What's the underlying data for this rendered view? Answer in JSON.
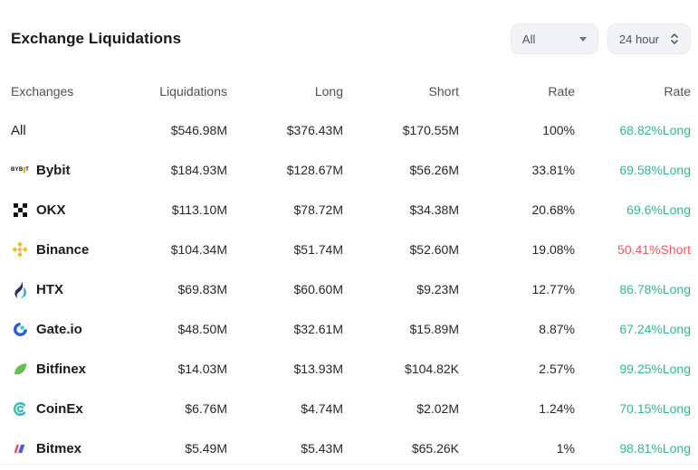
{
  "header": {
    "title": "Exchange Liquidations",
    "filter_dropdown": {
      "value": "All"
    },
    "time_dropdown": {
      "value": "24 hour"
    }
  },
  "table": {
    "columns": [
      "Exchanges",
      "Liquidations",
      "Long",
      "Short",
      "Rate",
      "Rate"
    ],
    "rows": [
      {
        "name": "All",
        "icon": "none",
        "liquidations": "$546.98M",
        "long": "$376.43M",
        "short": "$170.55M",
        "rate": "100%",
        "long_short_rate": "68.82%Long",
        "direction": "long"
      },
      {
        "name": "Bybit",
        "icon": "bybit-logo",
        "liquidations": "$184.93M",
        "long": "$128.67M",
        "short": "$56.26M",
        "rate": "33.81%",
        "long_short_rate": "69.58%Long",
        "direction": "long"
      },
      {
        "name": "OKX",
        "icon": "okx-logo",
        "liquidations": "$113.10M",
        "long": "$78.72M",
        "short": "$34.38M",
        "rate": "20.68%",
        "long_short_rate": "69.6%Long",
        "direction": "long"
      },
      {
        "name": "Binance",
        "icon": "binance-logo",
        "liquidations": "$104.34M",
        "long": "$51.74M",
        "short": "$52.60M",
        "rate": "19.08%",
        "long_short_rate": "50.41%Short",
        "direction": "short"
      },
      {
        "name": "HTX",
        "icon": "htx-logo",
        "liquidations": "$69.83M",
        "long": "$60.60M",
        "short": "$9.23M",
        "rate": "12.77%",
        "long_short_rate": "86.78%Long",
        "direction": "long"
      },
      {
        "name": "Gate.io",
        "icon": "gate-logo",
        "liquidations": "$48.50M",
        "long": "$32.61M",
        "short": "$15.89M",
        "rate": "8.87%",
        "long_short_rate": "67.24%Long",
        "direction": "long"
      },
      {
        "name": "Bitfinex",
        "icon": "bitfinex-logo",
        "liquidations": "$14.03M",
        "long": "$13.93M",
        "short": "$104.82K",
        "rate": "2.57%",
        "long_short_rate": "99.25%Long",
        "direction": "long"
      },
      {
        "name": "CoinEx",
        "icon": "coinex-logo",
        "liquidations": "$6.76M",
        "long": "$4.74M",
        "short": "$2.02M",
        "rate": "1.24%",
        "long_short_rate": "70.15%Long",
        "direction": "long"
      },
      {
        "name": "Bitmex",
        "icon": "bitmex-logo",
        "liquidations": "$5.49M",
        "long": "$5.43M",
        "short": "$65.26K",
        "rate": "1%",
        "long_short_rate": "98.81%Long",
        "direction": "long"
      }
    ]
  },
  "colors": {
    "long_green": "#2ebd85",
    "short_red": "#f2555f",
    "binance_yellow": "#f3ba2f",
    "bybit_orange": "#f7a600"
  }
}
